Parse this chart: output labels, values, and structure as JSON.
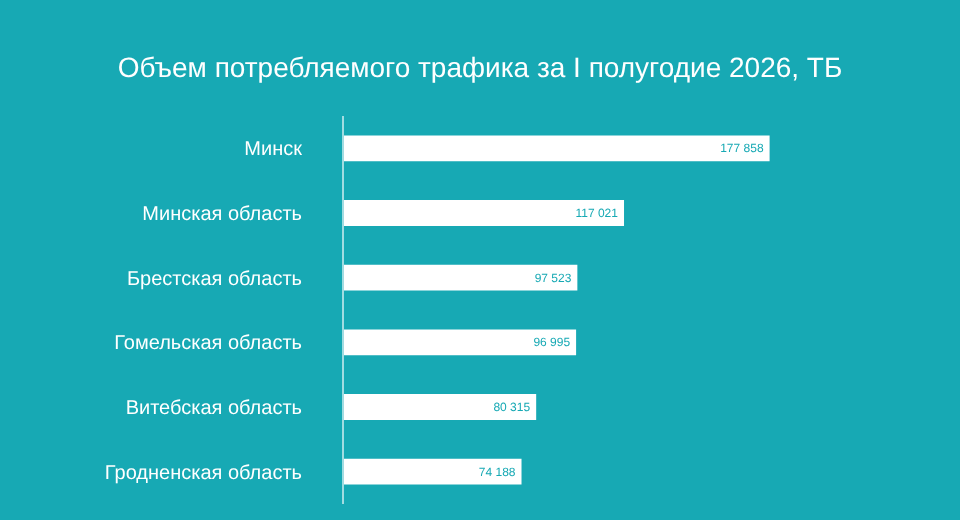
{
  "chart_data": {
    "type": "bar",
    "orientation": "horizontal",
    "title": "Объем потребляемого трафика за I полугодие 2026, ТБ",
    "categories": [
      "Минск",
      "Минская область",
      "Брестская область",
      "Гомельская область",
      "Витебская область",
      "Гродненская область"
    ],
    "values": [
      177858,
      117021,
      97523,
      96995,
      80315,
      74188
    ],
    "value_labels": [
      "177 858",
      "117 021",
      "97 523",
      "96 995",
      "80 315",
      "74 188"
    ],
    "color": "#ffffff",
    "tick_labels": "y",
    "grid": false,
    "legend": false
  }
}
